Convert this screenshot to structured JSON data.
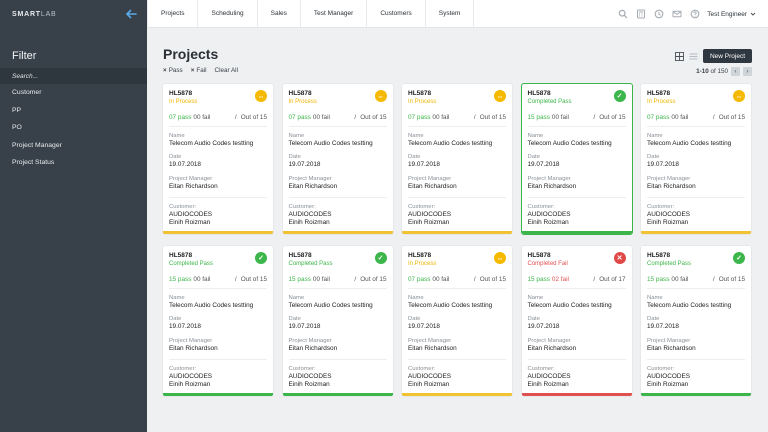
{
  "brand": {
    "bold": "SMART",
    "light": "LAB"
  },
  "sidebar": {
    "filter_title": "Filter",
    "search_placeholder": "Search...",
    "items": [
      "Customer",
      "PP",
      "PO",
      "Project Manager",
      "Project Status"
    ]
  },
  "nav": {
    "tabs": [
      "Projects",
      "Scheduling",
      "Sales",
      "Test Manager",
      "Customers",
      "System"
    ],
    "user": "Test Engineer"
  },
  "page": {
    "title": "Projects",
    "chips": [
      "Pass",
      "Fail"
    ],
    "clear_all": "Clear All",
    "new_project": "New Project",
    "pager_range": "1-10",
    "pager_total": "of 150"
  },
  "card_labels": {
    "name": "Name",
    "date": "Date",
    "pm": "Project Manager",
    "customer": "Customer:",
    "pass": "pass",
    "fail": "fail",
    "out_of": "Out of"
  },
  "projects": [
    {
      "id": "HL5878",
      "status": "In Process",
      "status_type": "yellow",
      "pass": "07",
      "fail": "00",
      "total": "15",
      "name": "Telecom Audio Codes testting",
      "date": "19.07.2018",
      "manager": "Eitan Richardson",
      "customer": "AUDIOCODES",
      "contact": "Einih Roizman"
    },
    {
      "id": "HL5878",
      "status": "In Process",
      "status_type": "yellow",
      "pass": "07",
      "fail": "00",
      "total": "15",
      "name": "Telecom Audio Codes testting",
      "date": "19.07.2018",
      "manager": "Eitan Richardson",
      "customer": "AUDIOCODES",
      "contact": "Einih Roizman"
    },
    {
      "id": "HL5878",
      "status": "In Process",
      "status_type": "yellow",
      "pass": "07",
      "fail": "00",
      "total": "15",
      "name": "Telecom Audio Codes testting",
      "date": "19.07.2018",
      "manager": "Eitan Richardson",
      "customer": "AUDIOCODES",
      "contact": "Einih Roizman"
    },
    {
      "id": "HL5878",
      "status": "Completed Pass",
      "status_type": "green",
      "pass": "15",
      "fail": "00",
      "total": "15",
      "name": "Telecom Audio Codes testting",
      "date": "19.07.2018",
      "manager": "Eitan Richardson",
      "customer": "AUDIOCODES",
      "contact": "Einih Roizman",
      "selected": true
    },
    {
      "id": "HL5878",
      "status": "In Process",
      "status_type": "yellow",
      "pass": "07",
      "fail": "00",
      "total": "15",
      "name": "Telecom Audio Codes testting",
      "date": "19.07.2018",
      "manager": "Eitan Richardson",
      "customer": "AUDIOCODES",
      "contact": "Einih Roizman"
    },
    {
      "id": "HL5878",
      "status": "Completed Pass",
      "status_type": "green",
      "pass": "15",
      "fail": "00",
      "total": "15",
      "name": "Telecom Audio Codes testting",
      "date": "19.07.2018",
      "manager": "Eitan Richardson",
      "customer": "AUDIOCODES",
      "contact": "Einih Roizman"
    },
    {
      "id": "HL5878",
      "status": "Completed Pass",
      "status_type": "green",
      "pass": "15",
      "fail": "00",
      "total": "15",
      "name": "Telecom Audio Codes testting",
      "date": "19.07.2018",
      "manager": "Eitan Richardson",
      "customer": "AUDIOCODES",
      "contact": "Einih Roizman"
    },
    {
      "id": "HL5878",
      "status": "In Process",
      "status_type": "yellow",
      "pass": "07",
      "fail": "00",
      "total": "15",
      "name": "Telecom Audio Codes testting",
      "date": "19.07.2018",
      "manager": "Eitan Richardson",
      "customer": "AUDIOCODES",
      "contact": "Einih Roizman"
    },
    {
      "id": "HL5878",
      "status": "Completed Fail",
      "status_type": "red",
      "pass": "15",
      "fail": "02",
      "total": "17",
      "name": "Telecom Audio Codes testting",
      "date": "19.07.2018",
      "manager": "Eitan Richardson",
      "customer": "AUDIOCODES",
      "contact": "Einih Roizman"
    },
    {
      "id": "HL5878",
      "status": "Completed Pass",
      "status_type": "green",
      "pass": "15",
      "fail": "00",
      "total": "15",
      "name": "Telecom Audio Codes testting",
      "date": "19.07.2018",
      "manager": "Eitan Richardson",
      "customer": "AUDIOCODES",
      "contact": "Einih Roizman"
    }
  ],
  "colors": {
    "sidebar": "#38414a",
    "accent_green": "#3cb64a",
    "accent_yellow": "#f5b900",
    "accent_red": "#e04848"
  }
}
